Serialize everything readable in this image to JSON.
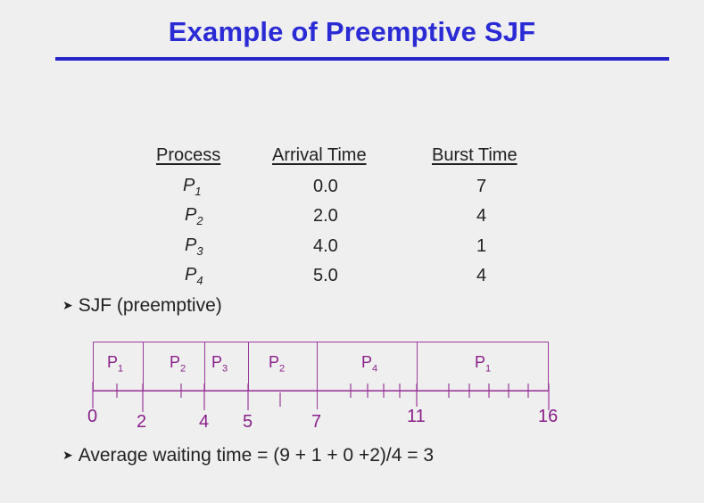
{
  "title": "Example of Preemptive SJF",
  "table": {
    "headers": [
      "Process",
      "Arrival Time",
      "Burst Time"
    ],
    "rows": [
      {
        "process": "P",
        "sub": "1",
        "arrival": "0.0",
        "burst": "7"
      },
      {
        "process": "P",
        "sub": "2",
        "arrival": "2.0",
        "burst": "4"
      },
      {
        "process": "P",
        "sub": "3",
        "arrival": "4.0",
        "burst": "1"
      },
      {
        "process": "P",
        "sub": "4",
        "arrival": "5.0",
        "burst": "4"
      }
    ]
  },
  "bullets": {
    "sjf": "SJF (preemptive)",
    "avg": "Average waiting time = (9 + 1 + 0 +2)/4 = 3"
  },
  "gantt": {
    "segments": [
      {
        "label": "P",
        "sub": "1"
      },
      {
        "label": "P",
        "sub": "2"
      },
      {
        "label": "P",
        "sub": "3"
      },
      {
        "label": "P",
        "sub": "2"
      },
      {
        "label": "P",
        "sub": "4"
      },
      {
        "label": "P",
        "sub": "1"
      }
    ],
    "axis": [
      "0",
      "2",
      "4",
      "5",
      "7",
      "11",
      "16"
    ]
  }
}
